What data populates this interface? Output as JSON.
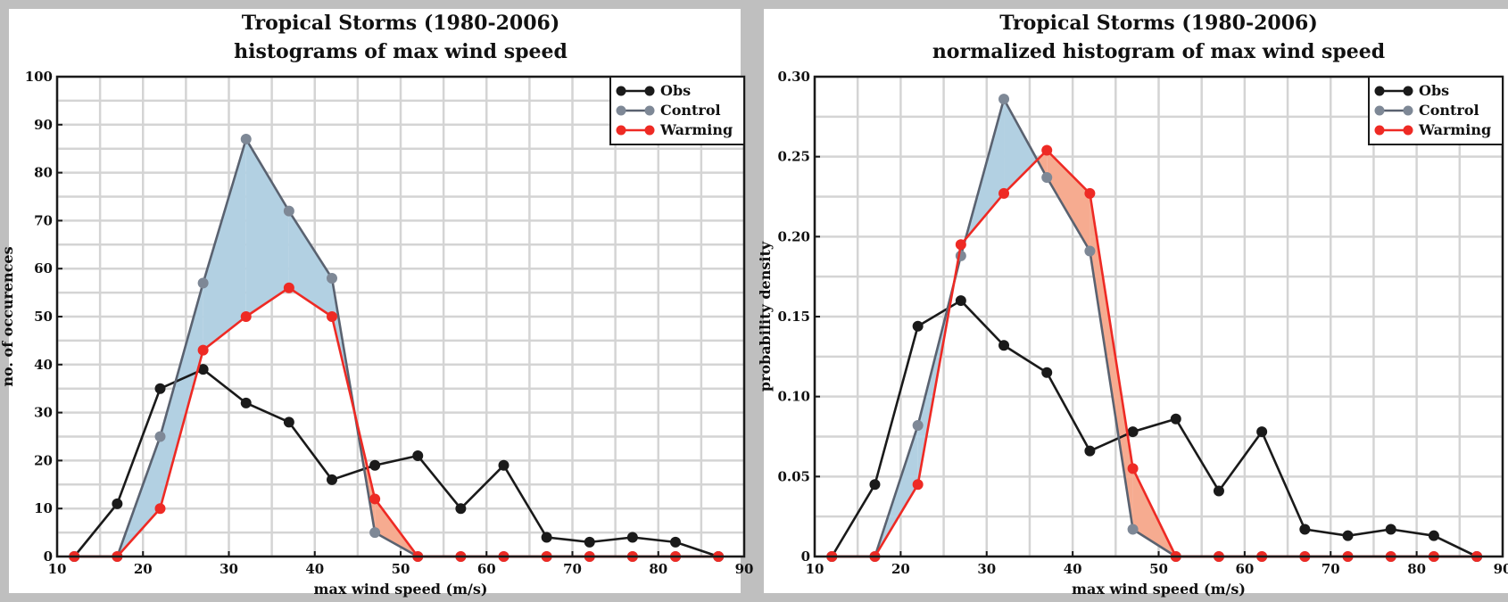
{
  "chart_data": [
    {
      "type": "line",
      "title": "Tropical Storms  (1980-2006)",
      "subtitle": "histograms of max wind speed",
      "xlabel": "max wind speed (m/s)",
      "ylabel": "no. of occurences",
      "xlim": [
        10,
        90
      ],
      "ylim": [
        0,
        100
      ],
      "xticks": [
        10,
        20,
        30,
        40,
        50,
        60,
        70,
        80,
        90
      ],
      "yticks": [
        0,
        10,
        20,
        30,
        40,
        50,
        60,
        70,
        80,
        90,
        100
      ],
      "grid": true,
      "legend_position": "top-right",
      "shading": "fill between Control and Warming series",
      "x": [
        12,
        17,
        22,
        27,
        32,
        37,
        42,
        47,
        52,
        57,
        62,
        67,
        72,
        77,
        82,
        87
      ],
      "series": [
        {
          "name": "Obs",
          "color": "#1a1a1a",
          "marker_color": "#1a1a1a",
          "values": [
            0,
            11,
            35,
            39,
            32,
            28,
            16,
            19,
            21,
            10,
            19,
            4,
            3,
            4,
            3,
            0
          ]
        },
        {
          "name": "Control",
          "color": "#5a6270",
          "marker_color": "#7e8896",
          "values": [
            0,
            0,
            25,
            57,
            87,
            72,
            58,
            5,
            0,
            0,
            0,
            0,
            0,
            0,
            0,
            0
          ]
        },
        {
          "name": "Warming",
          "color": "#ee2a24",
          "marker_color": "#ee2a24",
          "values": [
            0,
            0,
            10,
            43,
            50,
            56,
            50,
            12,
            0,
            0,
            0,
            0,
            0,
            0,
            0,
            0
          ]
        }
      ]
    },
    {
      "type": "line",
      "title": "Tropical Storms  (1980-2006)",
      "subtitle": "normalized histogram of max wind speed",
      "xlabel": "max wind speed (m/s)",
      "ylabel": "probability density",
      "xlim": [
        10,
        90
      ],
      "ylim": [
        0,
        0.3
      ],
      "xticks": [
        10,
        20,
        30,
        40,
        50,
        60,
        70,
        80,
        90
      ],
      "yticks": [
        0,
        0.05,
        0.1,
        0.15,
        0.2,
        0.25,
        0.3
      ],
      "ytick_labels": [
        "0",
        "0.05",
        "0.10",
        "0.15",
        "0.20",
        "0.25",
        "0.30"
      ],
      "grid": true,
      "legend_position": "top-right",
      "shading": "fill between Control and Warming series",
      "x": [
        12,
        17,
        22,
        27,
        32,
        37,
        42,
        47,
        52,
        57,
        62,
        67,
        72,
        77,
        82,
        87
      ],
      "series": [
        {
          "name": "Obs",
          "color": "#1a1a1a",
          "marker_color": "#1a1a1a",
          "values": [
            0,
            0.045,
            0.144,
            0.16,
            0.132,
            0.115,
            0.066,
            0.078,
            0.086,
            0.041,
            0.078,
            0.017,
            0.013,
            0.017,
            0.013,
            0
          ]
        },
        {
          "name": "Control",
          "color": "#5a6270",
          "marker_color": "#7e8896",
          "values": [
            0,
            0,
            0.082,
            0.188,
            0.286,
            0.237,
            0.191,
            0.017,
            0,
            0,
            0,
            0,
            0,
            0,
            0,
            0
          ]
        },
        {
          "name": "Warming",
          "color": "#ee2a24",
          "marker_color": "#ee2a24",
          "values": [
            0,
            0,
            0.045,
            0.195,
            0.227,
            0.254,
            0.227,
            0.055,
            0,
            0,
            0,
            0,
            0,
            0,
            0,
            0
          ]
        }
      ]
    }
  ],
  "colors": {
    "fill_control_above": "#b2d0e2",
    "fill_warming_above": "#f6ab90",
    "grid": "#d4d4d4",
    "frame": "#1a1a1a",
    "plot_background": "#ffffff",
    "panel_background": "#ffffff",
    "page_background": "#bfbfbf"
  }
}
